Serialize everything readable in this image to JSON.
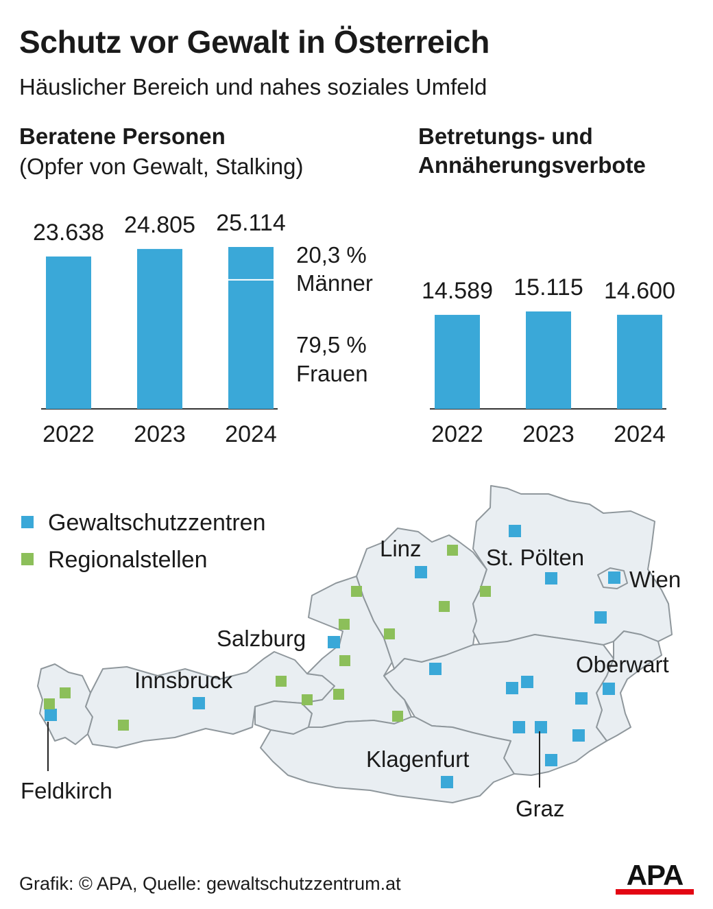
{
  "title": "Schutz vor Gewalt in Österreich",
  "subtitle": "Häuslicher Bereich und nahes soziales Umfeld",
  "colors": {
    "blue": "#3aa8d8",
    "green": "#8cbf5a",
    "map_fill": "#e9eef2",
    "map_stroke": "#8f979c"
  },
  "chart_data": [
    {
      "type": "bar",
      "title": "Beratene Personen",
      "subtitle": "(Opfer von Gewalt, Stalking)",
      "categories": [
        "2022",
        "2023",
        "2024"
      ],
      "values": [
        23638,
        24805,
        25114
      ],
      "value_labels": [
        "23.638",
        "24.805",
        "25.114"
      ],
      "ylim": [
        0,
        25114
      ],
      "breakdown_2024": [
        {
          "label_value": "20,3 %",
          "label_name": "Männer",
          "share": 20.3
        },
        {
          "label_value": "79,5 %",
          "label_name": "Frauen",
          "share": 79.5
        }
      ]
    },
    {
      "type": "bar",
      "title_line1": "Betretungs- und",
      "title_line2": "Annäherungsverbote",
      "categories": [
        "2022",
        "2023",
        "2024"
      ],
      "values": [
        14589,
        15115,
        14600
      ],
      "value_labels": [
        "14.589",
        "15.115",
        "14.600"
      ],
      "ylim": [
        0,
        15115
      ]
    }
  ],
  "map": {
    "legend": [
      {
        "label": "Gewaltschutzzentren",
        "color": "#3aa8d8"
      },
      {
        "label": "Regionalstellen",
        "color": "#8cbf5a"
      }
    ],
    "city_labels": [
      "Linz",
      "St. Pölten",
      "Wien",
      "Salzburg",
      "Innsbruck",
      "Oberwart",
      "Klagenfurt",
      "Feldkirch",
      "Graz"
    ]
  },
  "footer": "Grafik: © APA, Quelle: gewaltschutzzentrum.at",
  "logo": "APA"
}
